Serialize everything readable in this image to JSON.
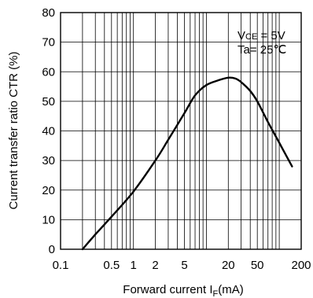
{
  "chart_data": {
    "type": "line",
    "title": "",
    "xlabel_main": "Forward current I",
    "xlabel_sub": "F",
    "xlabel_unit": "(mA)",
    "ylabel": "Current transfer ratio CTR (%)",
    "x_scale": "log",
    "xlim": [
      0.1,
      200
    ],
    "ylim": [
      0,
      80
    ],
    "x_ticks": [
      0.1,
      0.5,
      1,
      2,
      5,
      20,
      50,
      200
    ],
    "x_tick_labels": [
      "0.1",
      "0.5",
      "1",
      "2",
      "5",
      "20",
      "50",
      "200"
    ],
    "y_ticks": [
      0,
      10,
      20,
      30,
      40,
      50,
      60,
      70,
      80
    ],
    "y_tick_labels": [
      "0",
      "10",
      "20",
      "30",
      "40",
      "50",
      "60",
      "70",
      "80"
    ],
    "grid": true,
    "conditions": {
      "vce_prefix": "V",
      "vce_sub": "CE",
      "vce_value": " = 5V",
      "ta": "Ta= 25℃"
    },
    "series": [
      {
        "x": [
          0.2,
          0.3,
          0.5,
          1,
          2,
          3,
          5,
          7,
          10,
          15,
          20,
          25,
          30,
          40,
          50,
          70,
          100,
          150
        ],
        "values": [
          0,
          5,
          11,
          19.5,
          30,
          37,
          46,
          52,
          55.5,
          57.2,
          58,
          57.7,
          56.5,
          53.5,
          50,
          43,
          36,
          28
        ]
      }
    ]
  }
}
